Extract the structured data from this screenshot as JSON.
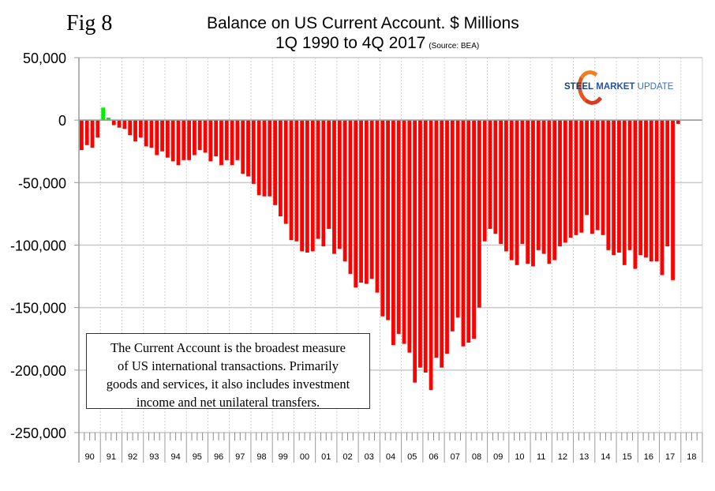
{
  "figure_label": "Fig 8",
  "logo": {
    "part1": "STEEL",
    "part2": "MARKET",
    "part3": "UPDATE"
  },
  "annotation": {
    "lines": [
      "The Current Account is the broadest measure",
      "of US international transactions. Primarily",
      "goods and services, it also includes investment",
      "income and net unilateral transfers."
    ]
  },
  "colors": {
    "negative": "#ff0000",
    "positive": "#00ee00",
    "grid": "#c8c8c8",
    "axis": "#999999"
  },
  "chart_data": {
    "type": "bar",
    "title": "Balance on US Current Account. $ Millions",
    "subtitle": "1Q 1990 to 4Q 2017",
    "source": "(Source: BEA)",
    "xlabel": "",
    "ylabel": "",
    "ylim": [
      -250000,
      50000
    ],
    "yticks": [
      50000,
      0,
      -50000,
      -100000,
      -150000,
      -200000,
      -250000
    ],
    "ytick_labels": [
      "50,000",
      "0",
      "-50,000",
      "-100,000",
      "-150,000",
      "-200,000",
      "-250,000"
    ],
    "xtick_labels": [
      "90",
      "91",
      "92",
      "93",
      "94",
      "95",
      "96",
      "97",
      "98",
      "99",
      "00",
      "01",
      "02",
      "03",
      "04",
      "05",
      "06",
      "07",
      "08",
      "09",
      "10",
      "11",
      "12",
      "13",
      "14",
      "15",
      "16",
      "17",
      "18"
    ],
    "grid": true,
    "frequency": "quarterly",
    "start": "1990Q1",
    "end": "2017Q4",
    "values": [
      -24000,
      -20000,
      -22000,
      -14000,
      10000,
      2000,
      -4000,
      -6000,
      -7000,
      -12000,
      -17000,
      -14000,
      -21000,
      -22000,
      -28000,
      -25000,
      -30000,
      -33000,
      -36000,
      -32000,
      -32000,
      -28000,
      -24000,
      -26000,
      -33000,
      -29000,
      -36000,
      -32000,
      -36000,
      -32000,
      -43000,
      -45000,
      -51000,
      -60000,
      -61000,
      -61000,
      -68000,
      -77000,
      -83000,
      -96000,
      -97000,
      -105000,
      -106000,
      -105000,
      -95000,
      -101000,
      -87000,
      -107000,
      -103000,
      -113000,
      -123000,
      -134000,
      -130000,
      -131000,
      -127000,
      -138000,
      -157000,
      -160000,
      -180000,
      -171000,
      -179000,
      -186000,
      -210000,
      -198000,
      -202000,
      -216000,
      -190000,
      -198000,
      -187000,
      -169000,
      -158000,
      -181000,
      -178000,
      -175000,
      -150000,
      -97000,
      -87000,
      -91000,
      -99000,
      -105000,
      -112000,
      -116000,
      -99000,
      -115000,
      -117000,
      -104000,
      -107000,
      -115000,
      -112000,
      -101000,
      -98000,
      -94000,
      -92000,
      -90000,
      -76000,
      -91000,
      -88000,
      -92000,
      -104000,
      -108000,
      -106000,
      -116000,
      -104000,
      -119000,
      -108000,
      -110000,
      -113000,
      -113000,
      -124000,
      -101000,
      -128000,
      -3000
    ]
  }
}
